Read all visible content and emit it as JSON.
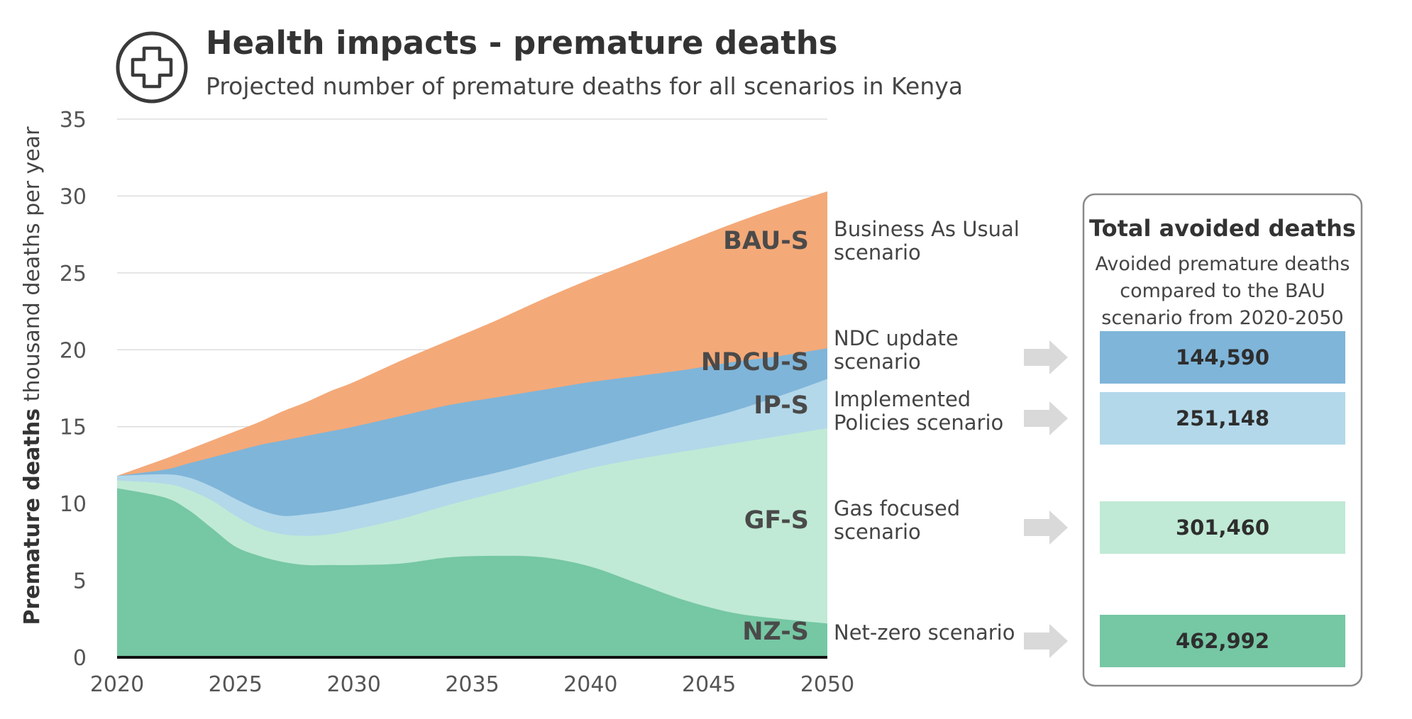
{
  "header": {
    "title": "Health impacts - premature deaths",
    "subtitle": "Projected number of premature deaths for all scenarios in Kenya",
    "icon": "medical-cross-icon"
  },
  "axes": {
    "ylabel_bold": "Premature deaths",
    "ylabel_rest": " thousand deaths per year"
  },
  "colors": {
    "BAU-S": "#f4a978",
    "NDCU-S": "#7fb5d9",
    "IP-S": "#b3d8ea",
    "GF-S": "#c0ead5",
    "NZ-S": "#76c7a4"
  },
  "chart_data": {
    "type": "area",
    "title": "Health impacts - premature deaths",
    "subtitle": "Projected number of premature deaths for all scenarios in Kenya",
    "xlabel": "",
    "ylabel": "Premature deaths thousand deaths per year",
    "xlim": [
      2020,
      2050
    ],
    "ylim": [
      0,
      35
    ],
    "x_ticks": [
      2020,
      2025,
      2030,
      2035,
      2040,
      2045,
      2050
    ],
    "y_ticks": [
      0,
      5,
      10,
      15,
      20,
      25,
      30,
      35
    ],
    "grid": true,
    "x": [
      2020,
      2022,
      2023,
      2024,
      2025,
      2026,
      2027,
      2028,
      2029,
      2030,
      2032,
      2034,
      2036,
      2038,
      2040,
      2042,
      2044,
      2046,
      2048,
      2050
    ],
    "series": [
      {
        "name": "BAU-S",
        "values": [
          11.8,
          12.9,
          13.5,
          14.1,
          14.7,
          15.3,
          16.0,
          16.6,
          17.3,
          17.9,
          19.3,
          20.6,
          21.9,
          23.3,
          24.6,
          25.8,
          27.0,
          28.2,
          29.3,
          30.3
        ]
      },
      {
        "name": "NDCU-S",
        "values": [
          11.8,
          12.2,
          12.6,
          13.0,
          13.4,
          13.8,
          14.1,
          14.4,
          14.7,
          15.0,
          15.7,
          16.4,
          16.9,
          17.4,
          17.9,
          18.3,
          18.7,
          19.2,
          19.6,
          20.1
        ]
      },
      {
        "name": "IP-S",
        "values": [
          11.8,
          11.9,
          11.7,
          11.1,
          10.3,
          9.6,
          9.2,
          9.3,
          9.5,
          9.8,
          10.5,
          11.3,
          12.0,
          12.8,
          13.6,
          14.4,
          15.2,
          16.0,
          17.0,
          18.1
        ]
      },
      {
        "name": "GF-S",
        "values": [
          11.5,
          11.3,
          10.9,
          10.2,
          9.2,
          8.4,
          8.0,
          7.9,
          8.0,
          8.3,
          9.0,
          9.9,
          10.7,
          11.5,
          12.3,
          12.9,
          13.4,
          13.9,
          14.4,
          14.9
        ]
      },
      {
        "name": "NZ-S",
        "values": [
          11.0,
          10.4,
          9.6,
          8.4,
          7.2,
          6.6,
          6.2,
          6.0,
          6.0,
          6.0,
          6.1,
          6.5,
          6.6,
          6.5,
          5.9,
          4.8,
          3.7,
          2.9,
          2.5,
          2.2
        ]
      }
    ]
  },
  "scenarios": [
    {
      "code": "BAU-S",
      "line1": "Business As Usual",
      "line2": "scenario"
    },
    {
      "code": "NDCU-S",
      "line1": "NDC update",
      "line2": "scenario"
    },
    {
      "code": "IP-S",
      "line1": "Implemented",
      "line2": "Policies scenario"
    },
    {
      "code": "GF-S",
      "line1": "Gas focused",
      "line2": "scenario"
    },
    {
      "code": "NZ-S",
      "line1": "Net-zero scenario",
      "line2": ""
    }
  ],
  "avoided_box": {
    "title": "Total avoided deaths",
    "sub1": "Avoided premature deaths",
    "sub2": "compared to the BAU",
    "sub3": "scenario from 2020-2050",
    "rows": [
      {
        "scenario": "NDCU-S",
        "value": "144,590"
      },
      {
        "scenario": "IP-S",
        "value": "251,148"
      },
      {
        "scenario": "GF-S",
        "value": "301,460"
      },
      {
        "scenario": "NZ-S",
        "value": "462,992"
      }
    ]
  }
}
